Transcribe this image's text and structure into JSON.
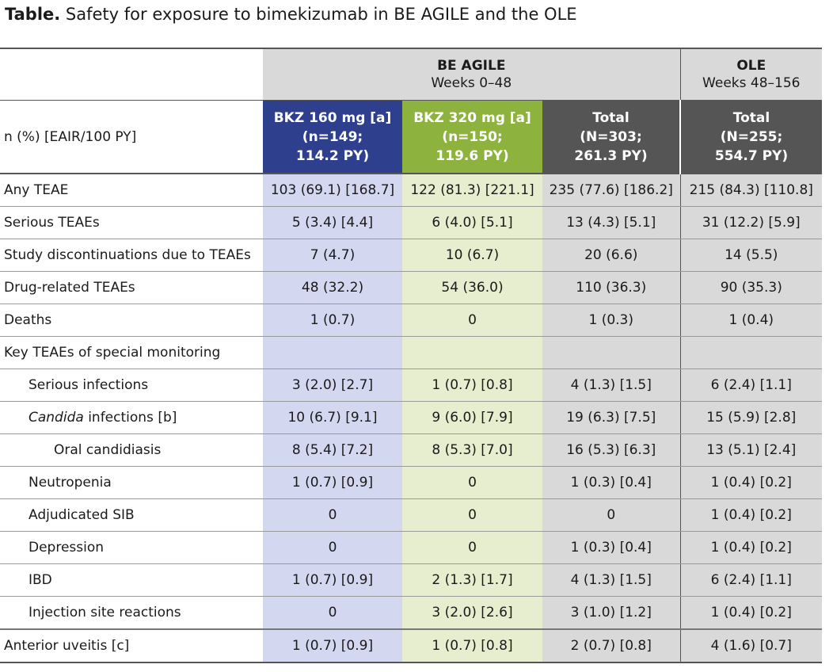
{
  "caption": {
    "bold": "Table.",
    "text": " Safety for exposure to bimekizumab in BE AGILE and the OLE"
  },
  "groups": {
    "agile_title": "BE AGILE",
    "agile_sub": "Weeks 0–48",
    "ole_title": "OLE",
    "ole_sub": "Weeks 48–156"
  },
  "header": {
    "row_label": "n (%) [EAIR/100 PY]",
    "arm160": [
      "BKZ 160 mg [a]",
      "(n=149;",
      "114.2 PY)"
    ],
    "arm320": [
      "BKZ 320 mg [a]",
      "(n=150;",
      "119.6 PY)"
    ],
    "total": [
      "Total",
      "(N=303;",
      "261.3 PY)"
    ],
    "ole_total": [
      "Total",
      "(N=255;",
      "554.7 PY)"
    ]
  },
  "rows": [
    {
      "label": "Any TEAE",
      "indent": 0,
      "v": [
        "103 (69.1) [168.7]",
        "122 (81.3) [221.1]",
        "235 (77.6) [186.2]",
        "215 (84.3) [110.8]"
      ]
    },
    {
      "label": "Serious TEAEs",
      "indent": 0,
      "v": [
        "5 (3.4) [4.4]",
        "6 (4.0) [5.1]",
        "13 (4.3) [5.1]",
        "31 (12.2) [5.9]"
      ]
    },
    {
      "label": "Study discontinuations due to TEAEs",
      "indent": 0,
      "v": [
        "7 (4.7)",
        "10 (6.7)",
        "20 (6.6)",
        "14 (5.5)"
      ]
    },
    {
      "label": "Drug-related TEAEs",
      "indent": 0,
      "v": [
        "48 (32.2)",
        "54 (36.0)",
        "110 (36.3)",
        "90 (35.3)"
      ]
    },
    {
      "label": "Deaths",
      "indent": 0,
      "v": [
        "1 (0.7)",
        "0",
        "1 (0.3)",
        "1 (0.4)"
      ]
    },
    {
      "label": "Key TEAEs of special monitoring",
      "indent": 0,
      "v": [
        "",
        "",
        "",
        ""
      ]
    },
    {
      "label": "Serious infections",
      "indent": 1,
      "v": [
        "3 (2.0) [2.7]",
        "1 (0.7) [0.8]",
        "4 (1.3) [1.5]",
        "6 (2.4) [1.1]"
      ]
    },
    {
      "label_italic": "Candida",
      "label": " infections [b]",
      "indent": 1,
      "v": [
        "10 (6.7) [9.1]",
        "9 (6.0) [7.9]",
        "19 (6.3) [7.5]",
        "15 (5.9) [2.8]"
      ]
    },
    {
      "label": "Oral candidiasis",
      "indent": 2,
      "v": [
        "8 (5.4) [7.2]",
        "8 (5.3) [7.0]",
        "16 (5.3) [6.3]",
        "13 (5.1) [2.4]"
      ]
    },
    {
      "label": "Neutropenia",
      "indent": 1,
      "v": [
        "1 (0.7) [0.9]",
        "0",
        "1 (0.3) [0.4]",
        "1 (0.4) [0.2]"
      ]
    },
    {
      "label": "Adjudicated SIB",
      "indent": 1,
      "v": [
        "0",
        "0",
        "0",
        "1 (0.4) [0.2]"
      ]
    },
    {
      "label": "Depression",
      "indent": 1,
      "v": [
        "0",
        "0",
        "1 (0.3) [0.4]",
        "1 (0.4) [0.2]"
      ]
    },
    {
      "label": "IBD",
      "indent": 1,
      "v": [
        "1 (0.7) [0.9]",
        "2 (1.3) [1.7]",
        "4 (1.3) [1.5]",
        "6 (2.4) [1.1]"
      ]
    },
    {
      "label": "Injection site reactions",
      "indent": 1,
      "v": [
        "0",
        "3 (2.0) [2.6]",
        "3 (1.0) [1.2]",
        "1 (0.4) [0.2]"
      ]
    },
    {
      "label": "Anterior uveitis [c]",
      "indent": 0,
      "v": [
        "1 (0.7) [0.9]",
        "1 (0.7) [0.8]",
        "2 (0.7) [0.8]",
        "4 (1.6) [0.7]"
      ]
    }
  ],
  "colors": {
    "arm160": "#2e3f8e",
    "arm320": "#8db33e",
    "total": "#555555",
    "grp": "#d9d9d9"
  }
}
